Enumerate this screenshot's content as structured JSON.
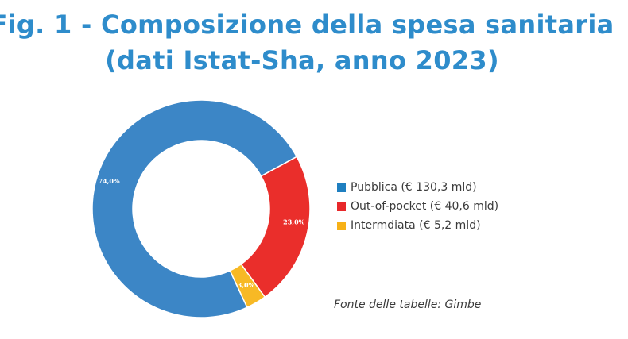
{
  "title": {
    "line1": "Fig. 1 - Composizione della spesa sanitaria",
    "line2": "(dati Istat-Sha, anno 2023)"
  },
  "chart_data": {
    "type": "pie",
    "variant": "donut",
    "title": "Fig. 1 - Composizione della spesa sanitaria (dati Istat-Sha, anno 2023)",
    "categories": [
      "Pubblica (€ 130,3 mld)",
      "Out-of-pocket (€ 40,6 mld)",
      "Intermdiata (€ 5,2 mld)"
    ],
    "values": [
      74.0,
      23.0,
      3.0
    ],
    "value_labels": [
      "74,0%",
      "23,0%",
      "3,0%"
    ],
    "colors": [
      "#3c86c6",
      "#ea2e2b",
      "#f7b925"
    ],
    "legend_position": "right"
  },
  "legend": {
    "items": [
      {
        "label": "Pubblica (€ 130,3 mld)",
        "color": "#1f7fc0"
      },
      {
        "label": "Out-of-pocket (€ 40,6 mld)",
        "color": "#e8282a"
      },
      {
        "label": "Intermdiata (€ 5,2 mld)",
        "color": "#f7b117"
      }
    ]
  },
  "source": "Fonte delle tabelle: Gimbe"
}
